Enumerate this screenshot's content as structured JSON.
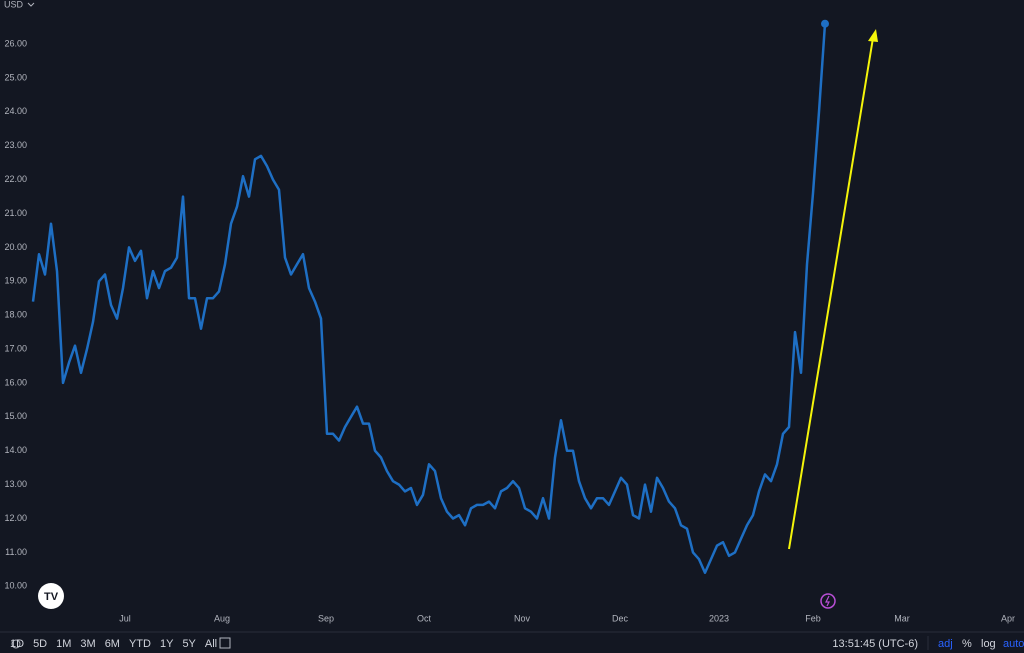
{
  "chart_data": {
    "type": "line",
    "currency": "USD",
    "color": "#1e6fc4",
    "last_point_marker": true,
    "values": [
      18.4,
      19.8,
      19.2,
      20.7,
      19.3,
      16.0,
      16.6,
      17.1,
      16.3,
      17.0,
      17.8,
      19.0,
      19.2,
      18.3,
      17.9,
      18.8,
      20.0,
      19.6,
      19.9,
      18.5,
      19.3,
      18.8,
      19.3,
      19.4,
      19.7,
      21.5,
      18.5,
      18.5,
      17.6,
      18.5,
      18.5,
      18.7,
      19.5,
      20.7,
      21.2,
      22.1,
      21.5,
      22.6,
      22.7,
      22.4,
      22.0,
      21.7,
      19.7,
      19.2,
      19.5,
      19.8,
      18.8,
      18.4,
      17.9,
      14.5,
      14.5,
      14.3,
      14.7,
      15.0,
      15.3,
      14.8,
      14.8,
      14.0,
      13.8,
      13.4,
      13.1,
      13.0,
      12.8,
      12.9,
      12.4,
      12.7,
      13.6,
      13.4,
      12.6,
      12.2,
      12.0,
      12.1,
      11.8,
      12.3,
      12.4,
      12.4,
      12.5,
      12.3,
      12.8,
      12.9,
      13.1,
      12.9,
      12.3,
      12.2,
      12.0,
      12.6,
      12.0,
      13.8,
      14.9,
      14.0,
      14.0,
      13.1,
      12.6,
      12.3,
      12.6,
      12.6,
      12.4,
      12.8,
      13.2,
      13.0,
      12.1,
      12.0,
      13.0,
      12.2,
      13.2,
      12.9,
      12.5,
      12.3,
      11.8,
      11.7,
      11.0,
      10.8,
      10.4,
      10.8,
      11.2,
      11.3,
      10.9,
      11.0,
      11.4,
      11.8,
      12.1,
      12.8,
      13.3,
      13.1,
      13.6,
      14.5,
      14.7,
      17.5,
      16.3,
      19.5,
      21.6,
      24.0,
      26.6
    ],
    "xlim": [
      -5.5,
      164.5
    ],
    "xticks": [
      {
        "value": 15.33,
        "label": "Jul"
      },
      {
        "value": 31.5,
        "label": "Aug"
      },
      {
        "value": 48.83,
        "label": "Sep"
      },
      {
        "value": 65.17,
        "label": "Oct"
      },
      {
        "value": 81.5,
        "label": "Nov"
      },
      {
        "value": 97.83,
        "label": "Dec"
      },
      {
        "value": 114.33,
        "label": "2023"
      },
      {
        "value": 130,
        "label": "Feb"
      },
      {
        "value": 144.83,
        "label": "Mar"
      },
      {
        "value": 162.5,
        "label": "Apr"
      }
    ],
    "ylim": [
      9.3,
      27.3
    ],
    "yticks": [
      {
        "value": 10,
        "label": "10.00"
      },
      {
        "value": 11,
        "label": "11.00"
      },
      {
        "value": 12,
        "label": "12.00"
      },
      {
        "value": 13,
        "label": "13.00"
      },
      {
        "value": 14,
        "label": "14.00"
      },
      {
        "value": 15,
        "label": "15.00"
      },
      {
        "value": 16,
        "label": "16.00"
      },
      {
        "value": 17,
        "label": "17.00"
      },
      {
        "value": 18,
        "label": "18.00"
      },
      {
        "value": 19,
        "label": "19.00"
      },
      {
        "value": 20,
        "label": "20.00"
      },
      {
        "value": 21,
        "label": "21.00"
      },
      {
        "value": 22,
        "label": "22.00"
      },
      {
        "value": 23,
        "label": "23.00"
      },
      {
        "value": 24,
        "label": "24.00"
      },
      {
        "value": 25,
        "label": "25.00"
      },
      {
        "value": 26,
        "label": "26.00"
      }
    ]
  },
  "toolbar": {
    "ranges": [
      "1D",
      "5D",
      "1M",
      "3M",
      "6M",
      "YTD",
      "1Y",
      "5Y",
      "All"
    ],
    "time": "13:51:45 (UTC-6)",
    "options": [
      "adj",
      "%",
      "log",
      "auto"
    ]
  }
}
